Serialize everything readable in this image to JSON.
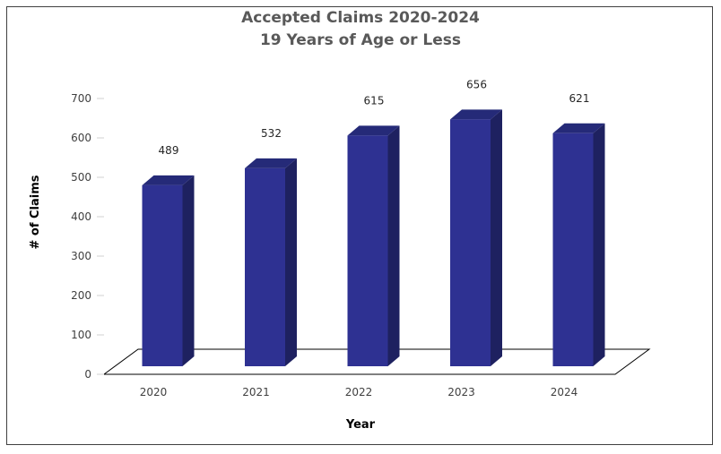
{
  "chart_data": {
    "type": "bar",
    "title": "Accepted Claims 2020-2024",
    "subtitle": "19 Years of Age or Less",
    "categories": [
      "2020",
      "2021",
      "2022",
      "2023",
      "2024"
    ],
    "values": [
      489,
      532,
      615,
      656,
      621
    ],
    "xlabel": "Year",
    "ylabel": "# of Claims",
    "ylim": [
      0,
      700
    ],
    "yticks": [
      0,
      100,
      200,
      300,
      400,
      500,
      600,
      700
    ],
    "grid": false,
    "legend": "none",
    "bar_color": "#2E3192",
    "bar_side_color": "#1E2160",
    "bar_top_color": "#252A78"
  }
}
